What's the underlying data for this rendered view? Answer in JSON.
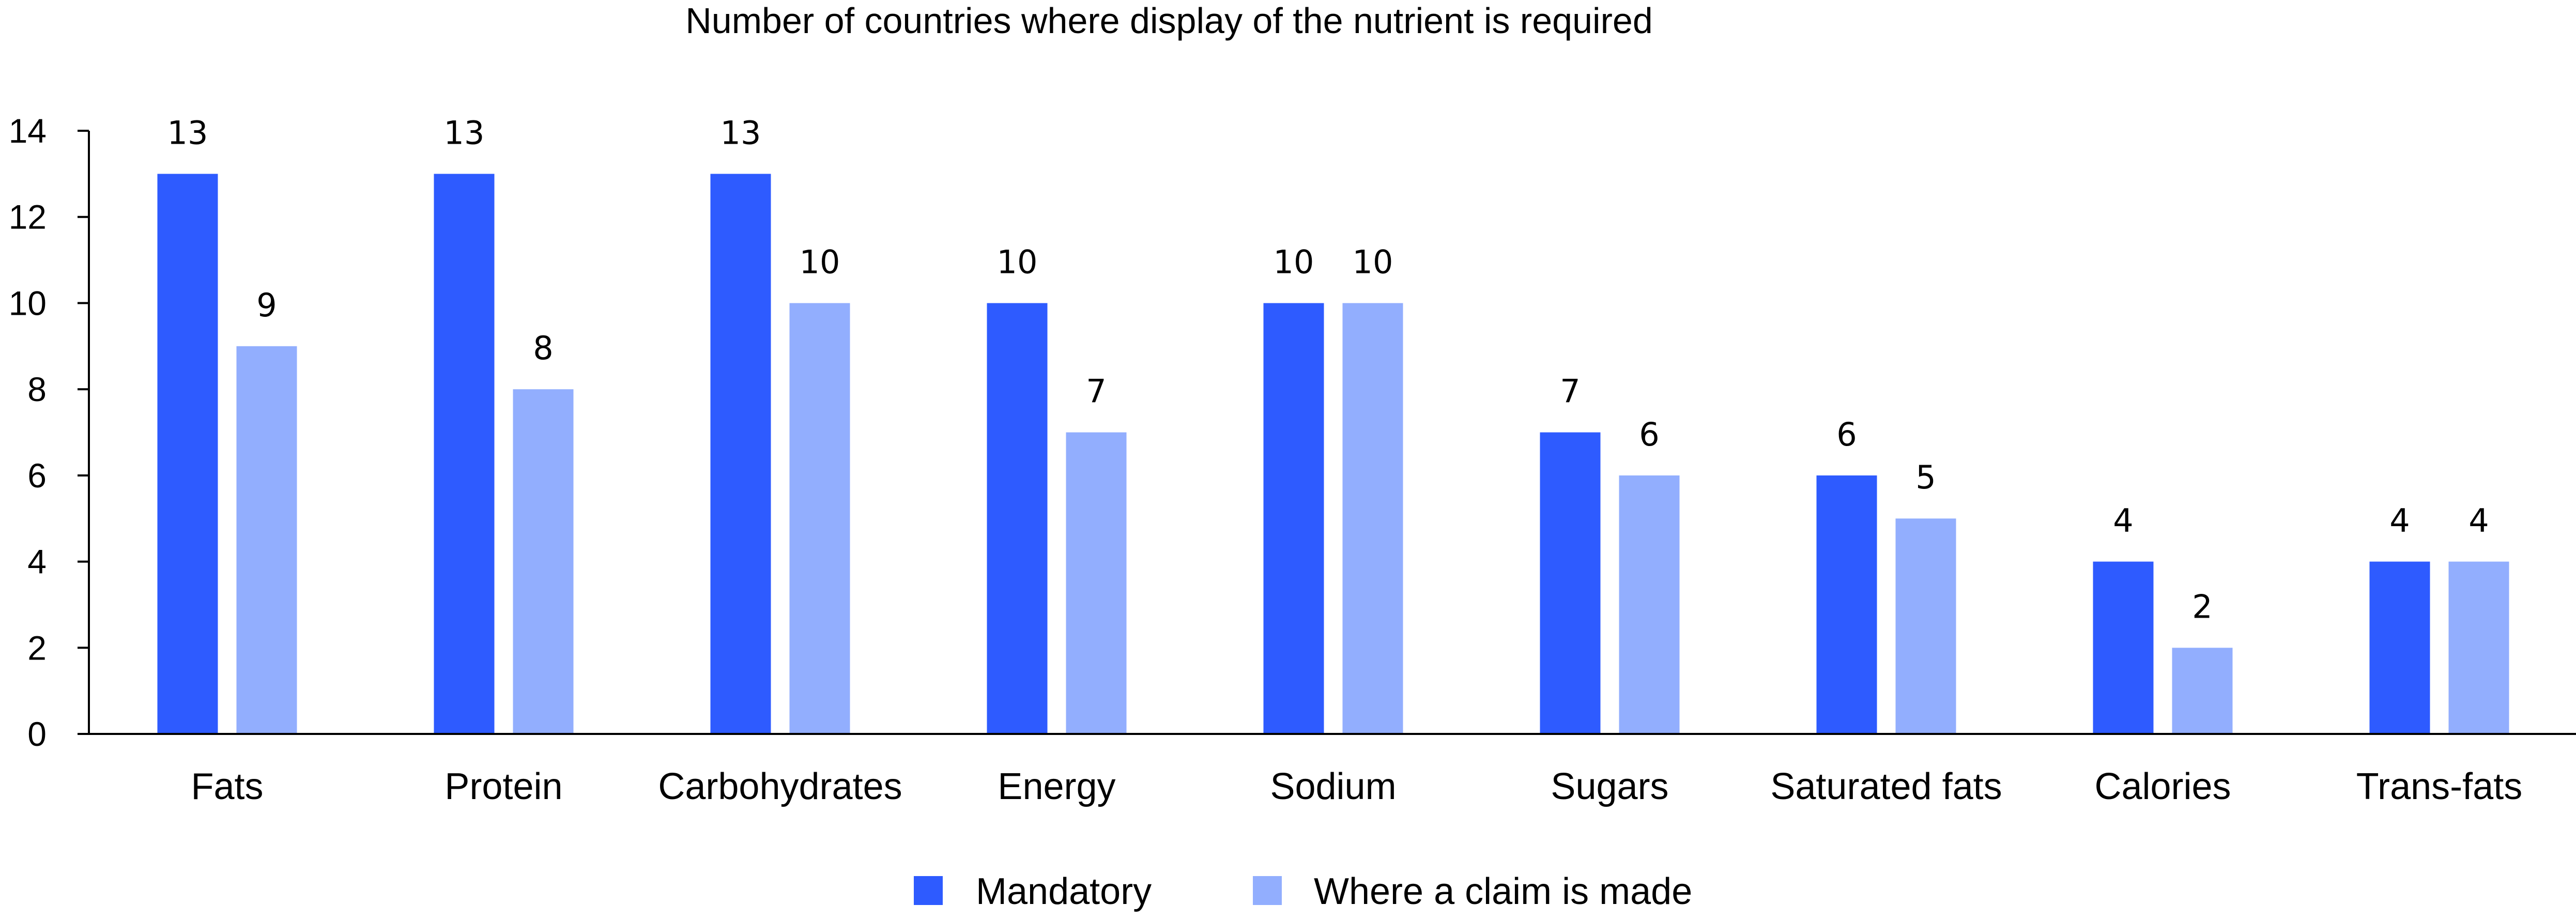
{
  "chart_data": {
    "type": "bar",
    "title": "Number of countries where display of the nutrient is required",
    "xlabel": "",
    "ylabel": "",
    "ylim": [
      0,
      14
    ],
    "yticks": [
      0,
      2,
      4,
      6,
      8,
      10,
      12,
      14
    ],
    "grid": false,
    "legend_position": "bottom-center",
    "categories": [
      "Fats",
      "Protein",
      "Carbohydrates",
      "Energy",
      "Sodium",
      "Sugars",
      "Saturated fats",
      "Calories",
      "Trans-fats"
    ],
    "series": [
      {
        "name": "Mandatory",
        "color": "#2e5bff",
        "values": [
          13,
          13,
          13,
          10,
          10,
          7,
          6,
          4,
          4
        ]
      },
      {
        "name": "Where a claim is made",
        "color": "#92aefe",
        "values": [
          9,
          8,
          10,
          7,
          10,
          6,
          5,
          2,
          4
        ]
      }
    ]
  }
}
